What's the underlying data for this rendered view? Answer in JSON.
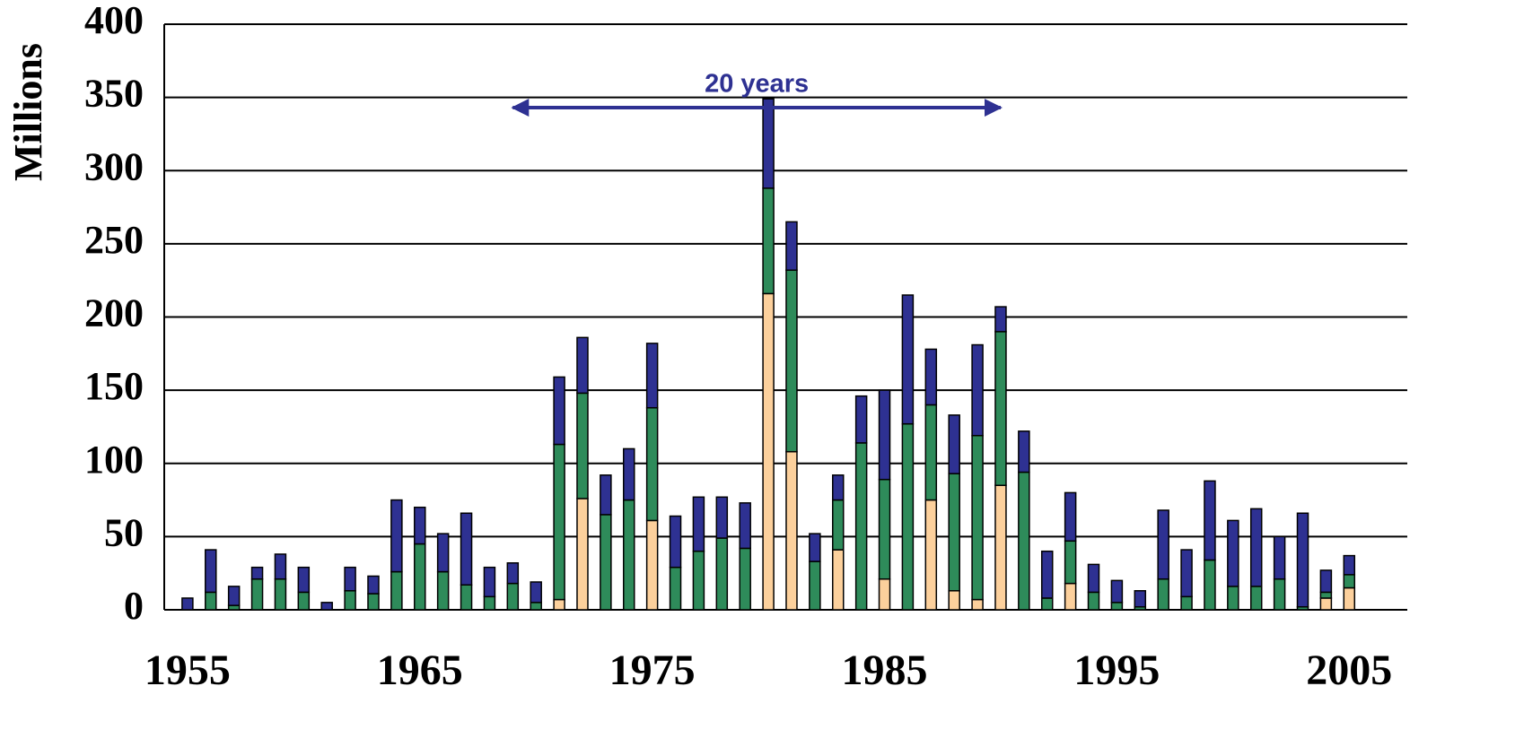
{
  "chart_data": {
    "type": "stacked_bar",
    "y_label": "Millions",
    "annotation": "20 years",
    "x": [
      1955,
      1956,
      1957,
      1958,
      1959,
      1960,
      1961,
      1962,
      1963,
      1964,
      1965,
      1966,
      1967,
      1968,
      1969,
      1970,
      1971,
      1972,
      1973,
      1974,
      1975,
      1976,
      1977,
      1978,
      1979,
      1980,
      1981,
      1982,
      1983,
      1984,
      1985,
      1986,
      1987,
      1988,
      1989,
      1990,
      1991,
      1992,
      1993,
      1994,
      1995,
      1996,
      1997,
      1998,
      1999,
      2000,
      2001,
      2002,
      2003,
      2004,
      2005
    ],
    "series": [
      {
        "color": "#fcd09c",
        "values": [
          0,
          0,
          0,
          0,
          0,
          0,
          0,
          0,
          0,
          0,
          0,
          0,
          0,
          0,
          0,
          0,
          7,
          76,
          0,
          0,
          61,
          0,
          0,
          0,
          0,
          216,
          108,
          0,
          41,
          0,
          21,
          0,
          75,
          13,
          7,
          85,
          0,
          0,
          18,
          0,
          0,
          0,
          0,
          0,
          0,
          0,
          0,
          0,
          0,
          8,
          15
        ]
      },
      {
        "color": "#2e8b5a",
        "values": [
          0,
          12,
          3,
          21,
          21,
          12,
          0,
          13,
          11,
          26,
          45,
          26,
          17,
          9,
          18,
          5,
          106,
          72,
          65,
          75,
          77,
          29,
          40,
          49,
          42,
          72,
          124,
          33,
          34,
          114,
          68,
          127,
          65,
          80,
          112,
          105,
          94,
          8,
          29,
          12,
          5,
          2,
          21,
          9,
          34,
          16,
          16,
          21,
          2,
          4,
          9
        ]
      },
      {
        "color": "#2e3192",
        "values": [
          8,
          29,
          13,
          8,
          17,
          17,
          5,
          16,
          12,
          49,
          25,
          26,
          49,
          20,
          14,
          14,
          46,
          38,
          27,
          35,
          44,
          35,
          37,
          28,
          31,
          61,
          33,
          19,
          17,
          32,
          61,
          88,
          38,
          40,
          62,
          17,
          28,
          32,
          33,
          19,
          15,
          11,
          47,
          32,
          54,
          45,
          53,
          29,
          64,
          15,
          13
        ]
      }
    ],
    "xlim": [
      1954,
      2007.5
    ],
    "xticks": [
      1955,
      1965,
      1975,
      1985,
      1995,
      2005
    ],
    "ylim": [
      0,
      400
    ],
    "yticks": [
      0,
      50,
      100,
      150,
      200,
      250,
      300,
      350,
      400
    ],
    "annotation_x": [
      1969,
      1990
    ],
    "annotation_y": 343,
    "grid": true
  }
}
